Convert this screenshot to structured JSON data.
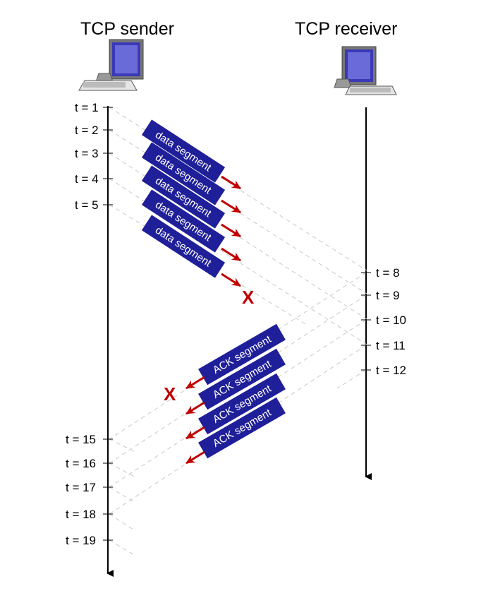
{
  "hosts": {
    "sender_title": "TCP sender",
    "receiver_title": "TCP receiver"
  },
  "sender_ticks": [
    "t = 1",
    "t = 2",
    "t = 3",
    "t = 4",
    "t = 5",
    "t = 15",
    "t = 16",
    "t = 17",
    "t = 18",
    "t = 19"
  ],
  "receiver_ticks": [
    "t = 8",
    "t = 9",
    "t = 10",
    "t = 11",
    "t = 12"
  ],
  "data_segments": [
    "data segment",
    "data segment",
    "data segment",
    "data segment",
    "data segment"
  ],
  "ack_segments": [
    "ACK segment",
    "ACK segment",
    "ACK segment",
    "ACK segment"
  ],
  "loss_marks": [
    "X",
    "X"
  ],
  "colors": {
    "segment_fill": "#1f1f9a",
    "arrow": "#c00000",
    "timeline": "#000000",
    "dashed": "#c8c8c8"
  }
}
